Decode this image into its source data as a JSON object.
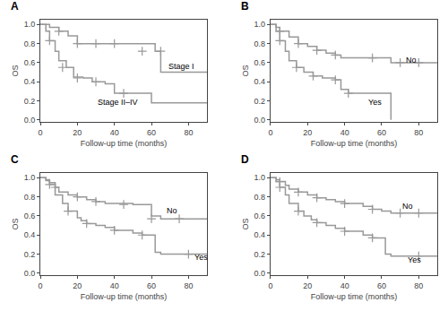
{
  "chart_data": [
    {
      "type": "line",
      "title": "A",
      "xlabel": "Follow-up time (months)",
      "ylabel": "OS",
      "xlim": [
        0,
        90
      ],
      "ylim": [
        -0.02,
        1.05
      ],
      "xticks": [
        0,
        20,
        40,
        60,
        80
      ],
      "yticks": [
        {
          "value": 0.0,
          "label": "0.0"
        },
        0.2,
        0.4,
        0.6,
        0.8,
        {
          "value": 1.0,
          "label": "1.0"
        }
      ],
      "grid": false,
      "series": [
        {
          "type": "line",
          "line_style": "step",
          "color": "#999999",
          "x": [
            0,
            5,
            10,
            15,
            20,
            30,
            35,
            40,
            62,
            65,
            90
          ],
          "values": [
            1.0,
            0.97,
            0.93,
            0.88,
            0.8,
            0.8,
            0.8,
            0.8,
            0.72,
            0.5,
            0.5
          ]
        },
        {
          "type": "scatter",
          "marker": "plus",
          "color": "#999999",
          "x": [
            10,
            20,
            30,
            40,
            55,
            65
          ],
          "values": [
            0.93,
            0.8,
            0.8,
            0.8,
            0.72,
            0.72
          ]
        },
        {
          "type": "line",
          "line_style": "step",
          "color": "#999999",
          "x": [
            0,
            3,
            5,
            8,
            10,
            14,
            18,
            23,
            28,
            35,
            40,
            55,
            60,
            90
          ],
          "values": [
            1.0,
            0.93,
            0.83,
            0.72,
            0.62,
            0.55,
            0.45,
            0.44,
            0.4,
            0.38,
            0.28,
            0.28,
            0.18,
            0.18
          ]
        },
        {
          "type": "scatter",
          "marker": "plus",
          "color": "#999999",
          "x": [
            5,
            12,
            20,
            30,
            45
          ],
          "values": [
            0.83,
            0.55,
            0.44,
            0.4,
            0.28
          ]
        }
      ],
      "annotations": [
        {
          "text": "Stage I",
          "x": 68,
          "y": 0.56
        },
        {
          "text": "Stage II–IV",
          "x": 30,
          "y": 0.19
        }
      ]
    },
    {
      "type": "line",
      "title": "B",
      "xlabel": "Follow-up time (months)",
      "ylabel": "OS",
      "xlim": [
        0,
        90
      ],
      "ylim": [
        -0.02,
        1.05
      ],
      "xticks": [
        0,
        20,
        40,
        60,
        80
      ],
      "yticks": [
        {
          "value": 0.0,
          "label": "0.0"
        },
        0.2,
        0.4,
        0.6,
        0.8,
        {
          "value": 1.0,
          "label": "1.0"
        }
      ],
      "grid": false,
      "series": [
        {
          "type": "line",
          "line_style": "step",
          "color": "#999999",
          "x": [
            0,
            3,
            5,
            10,
            15,
            20,
            25,
            30,
            35,
            38,
            62,
            65,
            90
          ],
          "values": [
            1.0,
            0.97,
            0.93,
            0.87,
            0.8,
            0.77,
            0.73,
            0.7,
            0.68,
            0.65,
            0.65,
            0.6,
            0.6
          ]
        },
        {
          "type": "scatter",
          "marker": "plus",
          "color": "#999999",
          "x": [
            5,
            15,
            25,
            35,
            55,
            70,
            80
          ],
          "values": [
            0.93,
            0.8,
            0.73,
            0.68,
            0.65,
            0.6,
            0.6
          ]
        },
        {
          "type": "line",
          "line_style": "step",
          "color": "#999999",
          "x": [
            0,
            3,
            5,
            8,
            10,
            14,
            18,
            23,
            28,
            35,
            38,
            42,
            60,
            65
          ],
          "values": [
            1.0,
            0.93,
            0.83,
            0.72,
            0.62,
            0.55,
            0.5,
            0.46,
            0.44,
            0.42,
            0.32,
            0.28,
            0.28,
            0.0
          ]
        },
        {
          "type": "scatter",
          "marker": "plus",
          "color": "#999999",
          "x": [
            5,
            14,
            23,
            35,
            42
          ],
          "values": [
            0.83,
            0.55,
            0.46,
            0.42,
            0.28
          ]
        }
      ],
      "annotations": [
        {
          "text": "No",
          "x": 72,
          "y": 0.63
        },
        {
          "text": "Yes",
          "x": 52,
          "y": 0.19
        }
      ]
    },
    {
      "type": "line",
      "title": "C",
      "xlabel": "Follow-up time (months)",
      "ylabel": "OS",
      "xlim": [
        0,
        90
      ],
      "ylim": [
        -0.02,
        1.05
      ],
      "xticks": [
        0,
        20,
        40,
        60,
        80
      ],
      "yticks": [
        {
          "value": 0.0,
          "label": "0.0"
        },
        0.2,
        0.4,
        0.6,
        0.8,
        {
          "value": 1.0,
          "label": "1.0"
        }
      ],
      "grid": false,
      "series": [
        {
          "type": "line",
          "line_style": "step",
          "color": "#999999",
          "x": [
            0,
            3,
            5,
            8,
            10,
            15,
            20,
            25,
            30,
            35,
            50,
            60,
            65,
            90
          ],
          "values": [
            1.0,
            0.98,
            0.95,
            0.9,
            0.85,
            0.82,
            0.8,
            0.77,
            0.75,
            0.73,
            0.72,
            0.6,
            0.57,
            0.57
          ]
        },
        {
          "type": "scatter",
          "marker": "plus",
          "color": "#999999",
          "x": [
            8,
            20,
            30,
            45,
            60,
            75
          ],
          "values": [
            0.9,
            0.8,
            0.75,
            0.72,
            0.57,
            0.57
          ]
        },
        {
          "type": "line",
          "line_style": "step",
          "color": "#999999",
          "x": [
            0,
            3,
            5,
            8,
            12,
            15,
            20,
            22,
            25,
            30,
            35,
            40,
            50,
            55,
            62,
            65,
            90
          ],
          "values": [
            1.0,
            0.97,
            0.93,
            0.82,
            0.73,
            0.65,
            0.58,
            0.55,
            0.52,
            0.5,
            0.48,
            0.45,
            0.42,
            0.4,
            0.22,
            0.2,
            0.2
          ]
        },
        {
          "type": "scatter",
          "marker": "plus",
          "color": "#999999",
          "x": [
            5,
            15,
            25,
            40,
            55,
            80
          ],
          "values": [
            0.93,
            0.65,
            0.52,
            0.45,
            0.4,
            0.2
          ]
        }
      ],
      "annotations": [
        {
          "text": "No",
          "x": 67,
          "y": 0.66
        },
        {
          "text": "Yes",
          "x": 82,
          "y": 0.17
        }
      ]
    },
    {
      "type": "line",
      "title": "D",
      "xlabel": "Follow-up time (months)",
      "ylabel": "OS",
      "xlim": [
        0,
        90
      ],
      "ylim": [
        -0.02,
        1.05
      ],
      "xticks": [
        0,
        20,
        40,
        60,
        80
      ],
      "yticks": [
        {
          "value": 0.0,
          "label": "0.0"
        },
        0.2,
        0.4,
        0.6,
        0.8,
        {
          "value": 1.0,
          "label": "1.0"
        }
      ],
      "grid": false,
      "series": [
        {
          "type": "line",
          "line_style": "step",
          "color": "#999999",
          "x": [
            0,
            3,
            5,
            8,
            10,
            15,
            20,
            25,
            30,
            35,
            40,
            50,
            55,
            60,
            65,
            90
          ],
          "values": [
            1.0,
            0.98,
            0.96,
            0.92,
            0.88,
            0.85,
            0.82,
            0.79,
            0.77,
            0.75,
            0.73,
            0.7,
            0.67,
            0.65,
            0.63,
            0.63
          ]
        },
        {
          "type": "scatter",
          "marker": "plus",
          "color": "#999999",
          "x": [
            5,
            15,
            25,
            40,
            55,
            70,
            80
          ],
          "values": [
            0.96,
            0.85,
            0.79,
            0.73,
            0.67,
            0.63,
            0.63
          ]
        },
        {
          "type": "line",
          "line_style": "step",
          "color": "#999999",
          "x": [
            0,
            3,
            5,
            8,
            10,
            15,
            18,
            22,
            25,
            30,
            35,
            40,
            50,
            55,
            62,
            65,
            90
          ],
          "values": [
            1.0,
            0.96,
            0.9,
            0.82,
            0.73,
            0.65,
            0.6,
            0.56,
            0.53,
            0.5,
            0.47,
            0.44,
            0.4,
            0.37,
            0.2,
            0.18,
            0.18
          ]
        },
        {
          "type": "scatter",
          "marker": "plus",
          "color": "#999999",
          "x": [
            5,
            15,
            25,
            40,
            55,
            80
          ],
          "values": [
            0.9,
            0.65,
            0.53,
            0.44,
            0.37,
            0.18
          ]
        }
      ],
      "annotations": [
        {
          "text": "No",
          "x": 70,
          "y": 0.7
        },
        {
          "text": "Yes",
          "x": 73,
          "y": 0.14
        }
      ]
    }
  ]
}
